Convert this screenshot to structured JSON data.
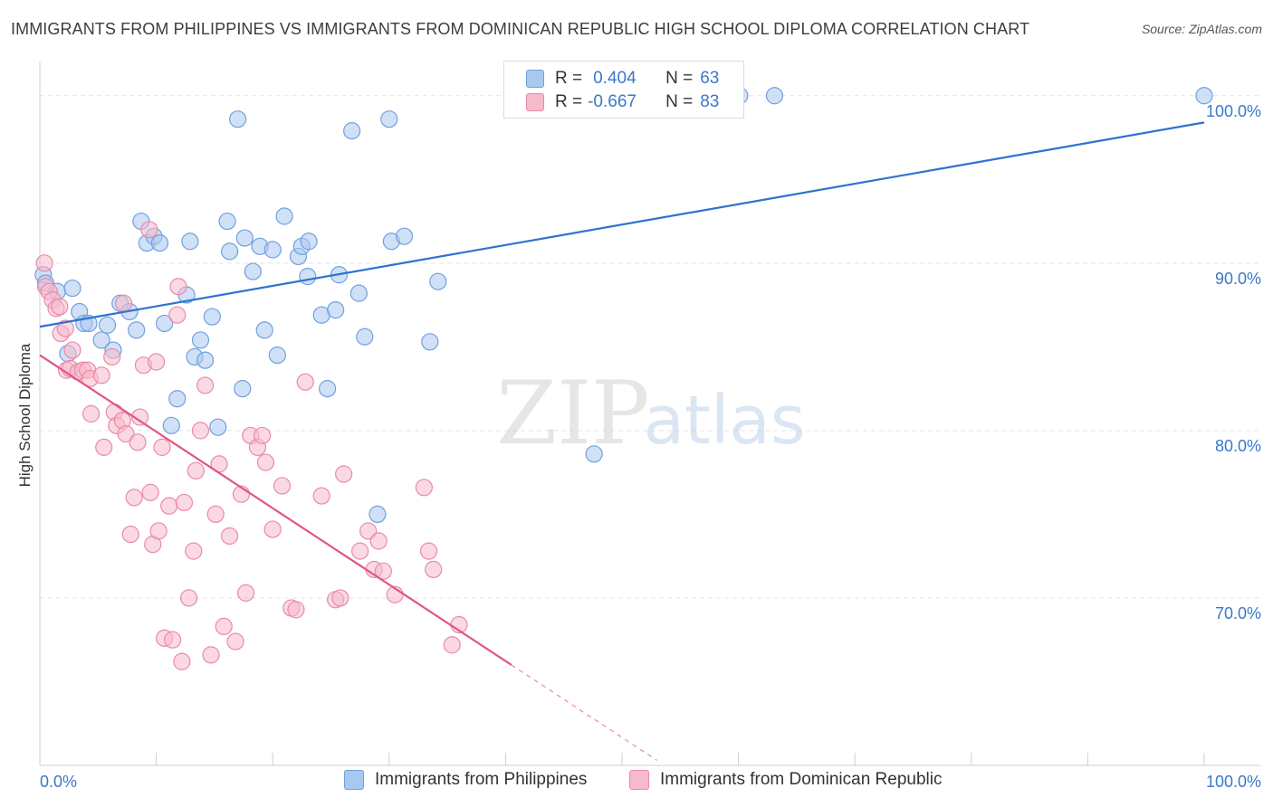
{
  "title": "IMMIGRANTS FROM PHILIPPINES VS IMMIGRANTS FROM DOMINICAN REPUBLIC HIGH SCHOOL DIPLOMA CORRELATION CHART",
  "source": "Source: ZipAtlas.com",
  "watermark": {
    "zip": "ZIP",
    "atlas": "atlas"
  },
  "legend_top": [
    {
      "r_key": "R =",
      "r_value": "0.404",
      "n_key": "N =",
      "n_value": "63",
      "color": "#a9c8f0",
      "border": "#6fa0e0"
    },
    {
      "r_key": "R =",
      "r_value": "-0.667",
      "n_key": "N =",
      "n_value": "83",
      "color": "#f7b9cc",
      "border": "#e98aa7"
    }
  ],
  "chart_data": {
    "type": "scatter",
    "title": "IMMIGRANTS FROM PHILIPPINES VS IMMIGRANTS FROM DOMINICAN REPUBLIC HIGH SCHOOL DIPLOMA CORRELATION CHART",
    "xlabel": "",
    "ylabel": "High School Diploma",
    "xlim": [
      0,
      100
    ],
    "ylim": [
      60,
      101.5
    ],
    "x_tick_labels": [
      "0.0%",
      "100.0%"
    ],
    "y_ticks": [
      {
        "value": 70,
        "label": "70.0%"
      },
      {
        "value": 80,
        "label": "80.0%"
      },
      {
        "value": 90,
        "label": "90.0%"
      },
      {
        "value": 100,
        "label": "100.0%"
      }
    ],
    "grid": true,
    "legend_position": "bottom",
    "series": [
      {
        "name": "Immigrants from Philippines",
        "color": "#6fa0e0",
        "fill": "#a9c8f0",
        "line_color": "#2f72cf",
        "trend": {
          "x0": 0,
          "y0": 86.2,
          "x1": 100,
          "y1": 98.4
        },
        "points": [
          [
            0.3,
            89.3
          ],
          [
            0.5,
            88.8
          ],
          [
            1.5,
            88.3
          ],
          [
            2.8,
            88.5
          ],
          [
            2.4,
            84.6
          ],
          [
            3.4,
            87.1
          ],
          [
            3.8,
            86.4
          ],
          [
            4.2,
            86.4
          ],
          [
            5.3,
            85.4
          ],
          [
            5.8,
            86.3
          ],
          [
            6.3,
            84.8
          ],
          [
            6.9,
            87.6
          ],
          [
            7.7,
            87.1
          ],
          [
            8.3,
            86.0
          ],
          [
            8.7,
            92.5
          ],
          [
            9.2,
            91.2
          ],
          [
            9.8,
            91.6
          ],
          [
            10.3,
            91.2
          ],
          [
            10.7,
            86.4
          ],
          [
            11.3,
            80.3
          ],
          [
            11.8,
            81.9
          ],
          [
            12.6,
            88.1
          ],
          [
            12.9,
            91.3
          ],
          [
            13.3,
            84.4
          ],
          [
            13.8,
            85.4
          ],
          [
            14.2,
            84.2
          ],
          [
            14.8,
            86.8
          ],
          [
            15.3,
            80.2
          ],
          [
            16.1,
            92.5
          ],
          [
            16.3,
            90.7
          ],
          [
            17.0,
            98.6
          ],
          [
            17.4,
            82.5
          ],
          [
            17.6,
            91.5
          ],
          [
            18.3,
            89.5
          ],
          [
            18.9,
            91.0
          ],
          [
            19.3,
            86.0
          ],
          [
            20.0,
            90.8
          ],
          [
            20.4,
            84.5
          ],
          [
            21.0,
            92.8
          ],
          [
            22.2,
            90.4
          ],
          [
            22.5,
            91.0
          ],
          [
            23.1,
            91.3
          ],
          [
            23.0,
            89.2
          ],
          [
            24.2,
            86.9
          ],
          [
            24.7,
            82.5
          ],
          [
            25.4,
            87.2
          ],
          [
            25.7,
            89.3
          ],
          [
            26.8,
            97.9
          ],
          [
            27.4,
            88.2
          ],
          [
            27.9,
            85.6
          ],
          [
            29.0,
            75.0
          ],
          [
            30.0,
            98.6
          ],
          [
            30.2,
            91.3
          ],
          [
            31.3,
            91.6
          ],
          [
            33.5,
            85.3
          ],
          [
            34.2,
            88.9
          ],
          [
            47.6,
            78.6
          ],
          [
            60.1,
            100.0
          ],
          [
            63.1,
            100.0
          ],
          [
            100.0,
            100.0
          ]
        ]
      },
      {
        "name": "Immigrants from Dominican Republic",
        "color": "#e98aa7",
        "fill": "#f7b9cc",
        "line_color": "#e0558a",
        "trend": {
          "x0": 0,
          "y0": 84.5,
          "x1": 40.5,
          "y1": 66.0
        },
        "trend_dash": {
          "x0": 40.5,
          "y0": 66.0,
          "x1": 53.0,
          "y1": 60.3
        },
        "points": [
          [
            0.4,
            90.0
          ],
          [
            0.5,
            88.6
          ],
          [
            0.8,
            88.3
          ],
          [
            1.1,
            87.8
          ],
          [
            1.4,
            87.3
          ],
          [
            1.7,
            87.4
          ],
          [
            1.8,
            85.8
          ],
          [
            2.2,
            86.1
          ],
          [
            2.3,
            83.6
          ],
          [
            2.6,
            83.7
          ],
          [
            2.8,
            84.8
          ],
          [
            3.3,
            83.5
          ],
          [
            3.7,
            83.6
          ],
          [
            4.1,
            83.6
          ],
          [
            4.3,
            83.1
          ],
          [
            4.4,
            81.0
          ],
          [
            5.3,
            83.3
          ],
          [
            5.5,
            79.0
          ],
          [
            6.2,
            84.4
          ],
          [
            6.4,
            81.1
          ],
          [
            6.6,
            80.3
          ],
          [
            7.1,
            80.6
          ],
          [
            7.2,
            87.6
          ],
          [
            7.4,
            79.8
          ],
          [
            7.8,
            73.8
          ],
          [
            8.1,
            76.0
          ],
          [
            8.4,
            79.3
          ],
          [
            8.6,
            80.8
          ],
          [
            8.9,
            83.9
          ],
          [
            9.4,
            92.0
          ],
          [
            9.5,
            76.3
          ],
          [
            9.7,
            73.2
          ],
          [
            10.0,
            84.1
          ],
          [
            10.2,
            74.0
          ],
          [
            10.5,
            79.0
          ],
          [
            10.7,
            67.6
          ],
          [
            11.1,
            75.5
          ],
          [
            11.4,
            67.5
          ],
          [
            11.8,
            86.9
          ],
          [
            11.9,
            88.6
          ],
          [
            12.2,
            66.2
          ],
          [
            12.4,
            75.7
          ],
          [
            12.8,
            70.0
          ],
          [
            13.2,
            72.8
          ],
          [
            13.4,
            77.6
          ],
          [
            13.8,
            80.0
          ],
          [
            14.2,
            82.7
          ],
          [
            14.7,
            66.6
          ],
          [
            15.1,
            75.0
          ],
          [
            15.4,
            78.0
          ],
          [
            15.8,
            68.3
          ],
          [
            16.3,
            73.7
          ],
          [
            16.8,
            67.4
          ],
          [
            17.3,
            76.2
          ],
          [
            17.7,
            70.3
          ],
          [
            18.1,
            79.7
          ],
          [
            18.7,
            79.0
          ],
          [
            19.1,
            79.7
          ],
          [
            19.4,
            78.1
          ],
          [
            20.0,
            74.1
          ],
          [
            20.8,
            76.7
          ],
          [
            21.6,
            69.4
          ],
          [
            22.0,
            69.3
          ],
          [
            22.8,
            82.9
          ],
          [
            24.2,
            76.1
          ],
          [
            25.4,
            69.9
          ],
          [
            25.8,
            70.0
          ],
          [
            26.1,
            77.4
          ],
          [
            27.5,
            72.8
          ],
          [
            28.2,
            74.0
          ],
          [
            28.7,
            71.7
          ],
          [
            29.1,
            73.4
          ],
          [
            29.5,
            71.6
          ],
          [
            30.5,
            70.2
          ],
          [
            33.0,
            76.6
          ],
          [
            33.4,
            72.8
          ],
          [
            33.8,
            71.7
          ],
          [
            35.4,
            67.2
          ],
          [
            36.0,
            68.4
          ]
        ]
      }
    ]
  },
  "legend_bottom": [
    {
      "label": "Immigrants from Philippines",
      "color": "#a9c8f0",
      "border": "#6fa0e0"
    },
    {
      "label": "Immigrants from Dominican Republic",
      "color": "#f7b9cc",
      "border": "#e98aa7"
    }
  ]
}
